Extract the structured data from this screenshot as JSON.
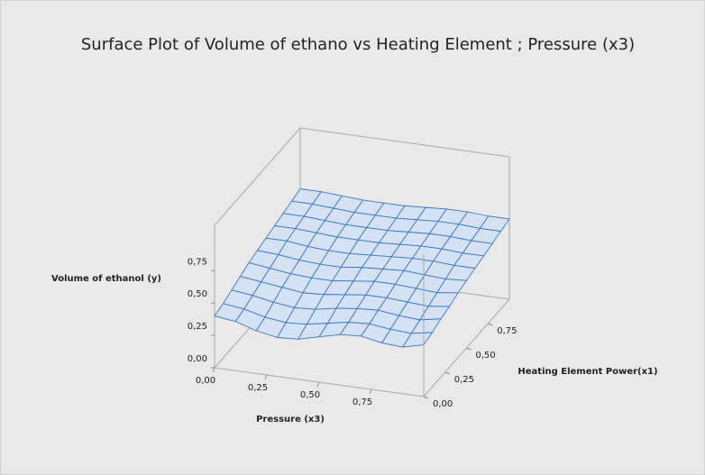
{
  "chart_data": {
    "type": "surface",
    "title": "Surface Plot of Volume of ethano vs Heating Element ; Pressure (x3)",
    "x_label": "Pressure (x3)",
    "y_label": "Heating Element Power(x1)",
    "z_label": "Volume of ethanol (y)",
    "x": [
      0,
      0.1,
      0.2,
      0.3,
      0.4,
      0.5,
      0.6,
      0.7,
      0.8,
      0.9,
      1.0
    ],
    "y": [
      0,
      0.1,
      0.2,
      0.3,
      0.4,
      0.5,
      0.6,
      0.7,
      0.8,
      0.9,
      1.0
    ],
    "z": [
      [
        0.4,
        0.38,
        0.33,
        0.3,
        0.31,
        0.35,
        0.39,
        0.4,
        0.37,
        0.36,
        0.4
      ],
      [
        0.42,
        0.4,
        0.36,
        0.34,
        0.35,
        0.38,
        0.41,
        0.42,
        0.4,
        0.39,
        0.42
      ],
      [
        0.45,
        0.43,
        0.4,
        0.38,
        0.39,
        0.42,
        0.44,
        0.45,
        0.43,
        0.42,
        0.45
      ],
      [
        0.48,
        0.46,
        0.44,
        0.42,
        0.43,
        0.45,
        0.47,
        0.47,
        0.46,
        0.45,
        0.47
      ],
      [
        0.51,
        0.49,
        0.47,
        0.46,
        0.46,
        0.48,
        0.5,
        0.5,
        0.49,
        0.48,
        0.5
      ],
      [
        0.53,
        0.52,
        0.5,
        0.49,
        0.49,
        0.51,
        0.52,
        0.53,
        0.52,
        0.51,
        0.52
      ],
      [
        0.55,
        0.55,
        0.53,
        0.52,
        0.52,
        0.53,
        0.54,
        0.55,
        0.55,
        0.54,
        0.54
      ],
      [
        0.57,
        0.57,
        0.56,
        0.55,
        0.55,
        0.55,
        0.56,
        0.57,
        0.57,
        0.56,
        0.56
      ],
      [
        0.59,
        0.59,
        0.58,
        0.57,
        0.57,
        0.57,
        0.58,
        0.59,
        0.59,
        0.58,
        0.58
      ],
      [
        0.61,
        0.61,
        0.6,
        0.59,
        0.59,
        0.59,
        0.6,
        0.61,
        0.61,
        0.6,
        0.6
      ],
      [
        0.63,
        0.63,
        0.62,
        0.61,
        0.61,
        0.61,
        0.62,
        0.63,
        0.63,
        0.62,
        0.62
      ]
    ],
    "color": "#3a78c2",
    "xlim": [
      0,
      1
    ],
    "ylim": [
      0,
      1
    ],
    "zlim": [
      0,
      1.1
    ],
    "xticks": [
      {
        "value": 0,
        "label": "0,00"
      },
      {
        "value": 0.25,
        "label": "0,25"
      },
      {
        "value": 0.5,
        "label": "0,50"
      },
      {
        "value": 0.75,
        "label": "0,75"
      }
    ],
    "yticks": [
      {
        "value": 0,
        "label": "0,00"
      },
      {
        "value": 0.25,
        "label": "0,25"
      },
      {
        "value": 0.5,
        "label": "0,50"
      },
      {
        "value": 0.75,
        "label": "0,75"
      }
    ],
    "zticks": [
      {
        "value": 0,
        "label": "0,00"
      },
      {
        "value": 0.25,
        "label": "0,25"
      },
      {
        "value": 0.5,
        "label": "0,50"
      },
      {
        "value": 0.75,
        "label": "0,75"
      }
    ]
  }
}
